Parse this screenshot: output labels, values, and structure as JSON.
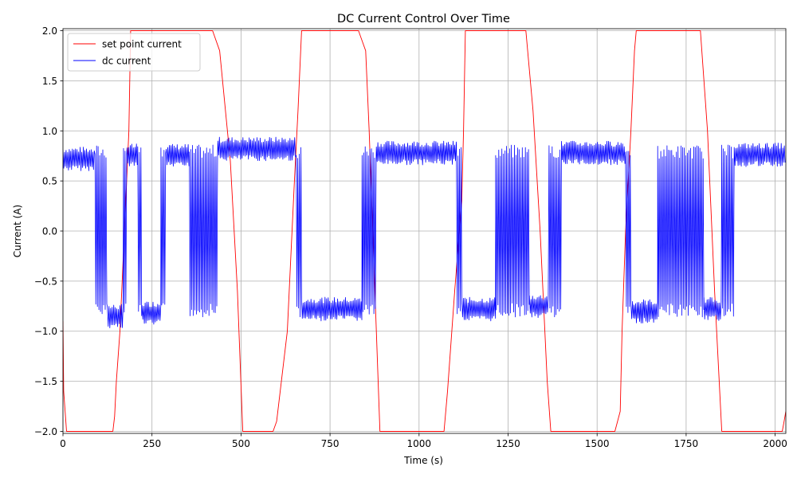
{
  "chart_data": {
    "type": "line",
    "title": "DC Current Control Over Time",
    "xlabel": "Time (s)",
    "ylabel": "Current (A)",
    "xlim": [
      0,
      2030
    ],
    "ylim": [
      -2.02,
      2.02
    ],
    "xticks": [
      0,
      250,
      500,
      750,
      1000,
      1250,
      1500,
      1750,
      2000
    ],
    "xtick_labels": [
      "0",
      "250",
      "500",
      "750",
      "1000",
      "1250",
      "1500",
      "1750",
      "2000"
    ],
    "yticks": [
      -2.0,
      -1.5,
      -1.0,
      -0.5,
      0.0,
      0.5,
      1.0,
      1.5,
      2.0
    ],
    "ytick_labels": [
      "−2.0",
      "−1.5",
      "−1.0",
      "−0.5",
      "0.0",
      "0.5",
      "1.0",
      "1.5",
      "2.0"
    ],
    "grid": true,
    "legend_position": "top-left",
    "series": [
      {
        "name": "set point current",
        "color": "#ff0000",
        "x": [
          0,
          2,
          10,
          140,
          145,
          150,
          160,
          185,
          190,
          420,
          440,
          470,
          490,
          505,
          590,
          600,
          630,
          650,
          660,
          670,
          720,
          830,
          840,
          850,
          860,
          880,
          890,
          1070,
          1080,
          1100,
          1120,
          1125,
          1130,
          1300,
          1320,
          1340,
          1360,
          1370,
          1550,
          1565,
          1570,
          1580,
          1595,
          1605,
          1610,
          1790,
          1810,
          1830,
          1850,
          2020,
          2025,
          2030
        ],
        "y": [
          -0.9,
          -1.6,
          -2.0,
          -2.0,
          -1.85,
          -1.5,
          -1.0,
          1.0,
          2.0,
          2.0,
          1.8,
          0.7,
          -0.6,
          -2.0,
          -2.0,
          -1.9,
          -1.0,
          0.5,
          1.2,
          2.0,
          2.0,
          2.0,
          1.9,
          1.8,
          1.0,
          -1.0,
          -2.0,
          -2.0,
          -1.6,
          -0.6,
          0.3,
          1.0,
          2.0,
          2.0,
          1.2,
          0.0,
          -1.5,
          -2.0,
          -2.0,
          -1.8,
          -1.0,
          0.0,
          1.0,
          1.8,
          2.0,
          2.0,
          1.0,
          -0.6,
          -2.0,
          -2.0,
          -1.9,
          -1.8
        ]
      },
      {
        "name": "dc current",
        "color": "#0000ff",
        "segments": [
          {
            "x0": 0,
            "x1": 90,
            "mode": "high",
            "level": 0.72
          },
          {
            "x0": 90,
            "x1": 125,
            "mode": "switch"
          },
          {
            "x0": 125,
            "x1": 170,
            "mode": "low",
            "level": -0.85
          },
          {
            "x0": 170,
            "x1": 180,
            "mode": "switch"
          },
          {
            "x0": 180,
            "x1": 210,
            "mode": "high",
            "level": 0.75
          },
          {
            "x0": 210,
            "x1": 222,
            "mode": "switch"
          },
          {
            "x0": 222,
            "x1": 275,
            "mode": "low",
            "level": -0.82
          },
          {
            "x0": 275,
            "x1": 290,
            "mode": "switch"
          },
          {
            "x0": 290,
            "x1": 355,
            "mode": "high",
            "level": 0.75
          },
          {
            "x0": 355,
            "x1": 435,
            "mode": "switch"
          },
          {
            "x0": 435,
            "x1": 655,
            "mode": "high",
            "level": 0.82
          },
          {
            "x0": 655,
            "x1": 670,
            "mode": "switch"
          },
          {
            "x0": 670,
            "x1": 840,
            "mode": "low",
            "level": -0.78
          },
          {
            "x0": 840,
            "x1": 880,
            "mode": "switch"
          },
          {
            "x0": 880,
            "x1": 1105,
            "mode": "high",
            "level": 0.78
          },
          {
            "x0": 1105,
            "x1": 1120,
            "mode": "switch"
          },
          {
            "x0": 1120,
            "x1": 1215,
            "mode": "low",
            "level": -0.78
          },
          {
            "x0": 1215,
            "x1": 1310,
            "mode": "switch"
          },
          {
            "x0": 1310,
            "x1": 1365,
            "mode": "low",
            "level": -0.75
          },
          {
            "x0": 1365,
            "x1": 1400,
            "mode": "switch"
          },
          {
            "x0": 1400,
            "x1": 1580,
            "mode": "high",
            "level": 0.78
          },
          {
            "x0": 1580,
            "x1": 1595,
            "mode": "switch"
          },
          {
            "x0": 1595,
            "x1": 1670,
            "mode": "low",
            "level": -0.8
          },
          {
            "x0": 1670,
            "x1": 1800,
            "mode": "switch"
          },
          {
            "x0": 1800,
            "x1": 1850,
            "mode": "low",
            "level": -0.78
          },
          {
            "x0": 1850,
            "x1": 1885,
            "mode": "switch"
          },
          {
            "x0": 1885,
            "x1": 2030,
            "mode": "high",
            "level": 0.76
          }
        ]
      }
    ]
  }
}
